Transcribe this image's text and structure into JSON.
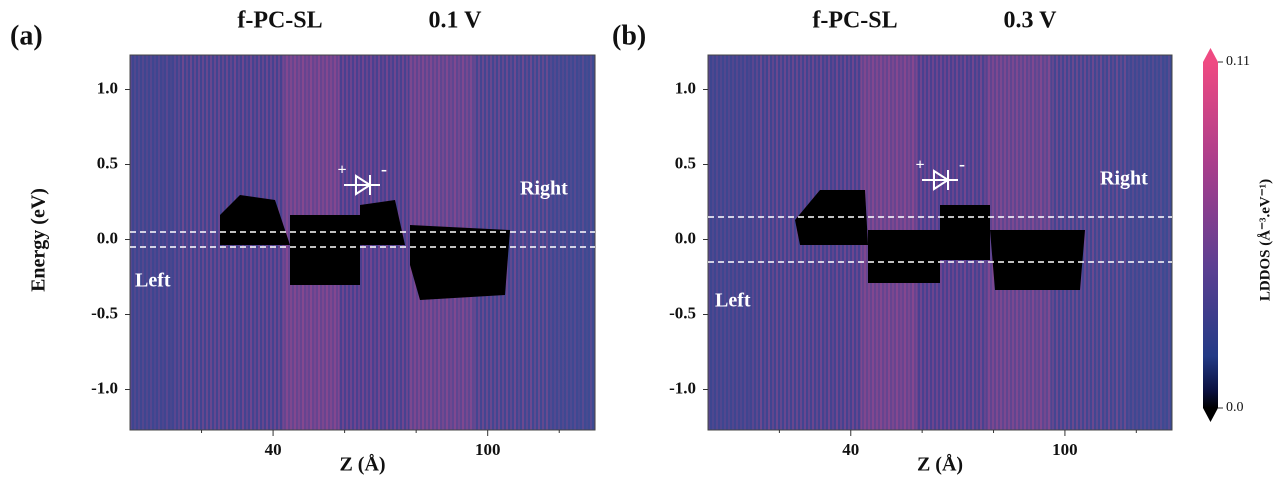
{
  "chart_data": [
    {
      "type": "heatmap",
      "panel_label": "(a)",
      "title": "f-PC-SL",
      "subtitle": "0.1 V",
      "xlabel": "Z (Å)",
      "ylabel": "Energy (eV)",
      "xlim": [
        0,
        130
      ],
      "xticks": [
        40,
        100
      ],
      "xminorticks": [
        20,
        60,
        80,
        120
      ],
      "ylim": [
        -1.27,
        1.23
      ],
      "yticks": [
        {
          "value": 1,
          "label": "1.0"
        },
        0.5,
        {
          "value": 0,
          "label": "0.0"
        },
        -0.5,
        {
          "value": -1,
          "label": "-1.0"
        }
      ],
      "bias_lines": [
        0.05,
        -0.05
      ],
      "annotations": {
        "left": "Left",
        "right": "Right",
        "diode_plus": "+",
        "diode_minus": "-"
      }
    },
    {
      "type": "heatmap",
      "panel_label": "(b)",
      "title": "f-PC-SL",
      "subtitle": "0.3 V",
      "xlabel": "Z (Å)",
      "xlim": [
        0,
        130
      ],
      "xticks": [
        40,
        100
      ],
      "xminorticks": [
        20,
        60,
        80,
        120
      ],
      "ylim": [
        -1.27,
        1.23
      ],
      "yticks": [
        {
          "value": 1,
          "label": "1.0"
        },
        0.5,
        {
          "value": 0,
          "label": "0.0"
        },
        -0.5,
        {
          "value": -1,
          "label": "-1.0"
        }
      ],
      "bias_lines": [
        0.15,
        -0.15
      ],
      "annotations": {
        "left": "Left",
        "right": "Right",
        "diode_plus": "+",
        "diode_minus": "-"
      },
      "colorbar": {
        "label": "LDDOS (Å⁻³.eV⁻¹)",
        "lim": [
          0,
          0.11
        ],
        "ticks": [
          {
            "value": 0,
            "label": "0.0"
          },
          0.11
        ]
      }
    }
  ]
}
